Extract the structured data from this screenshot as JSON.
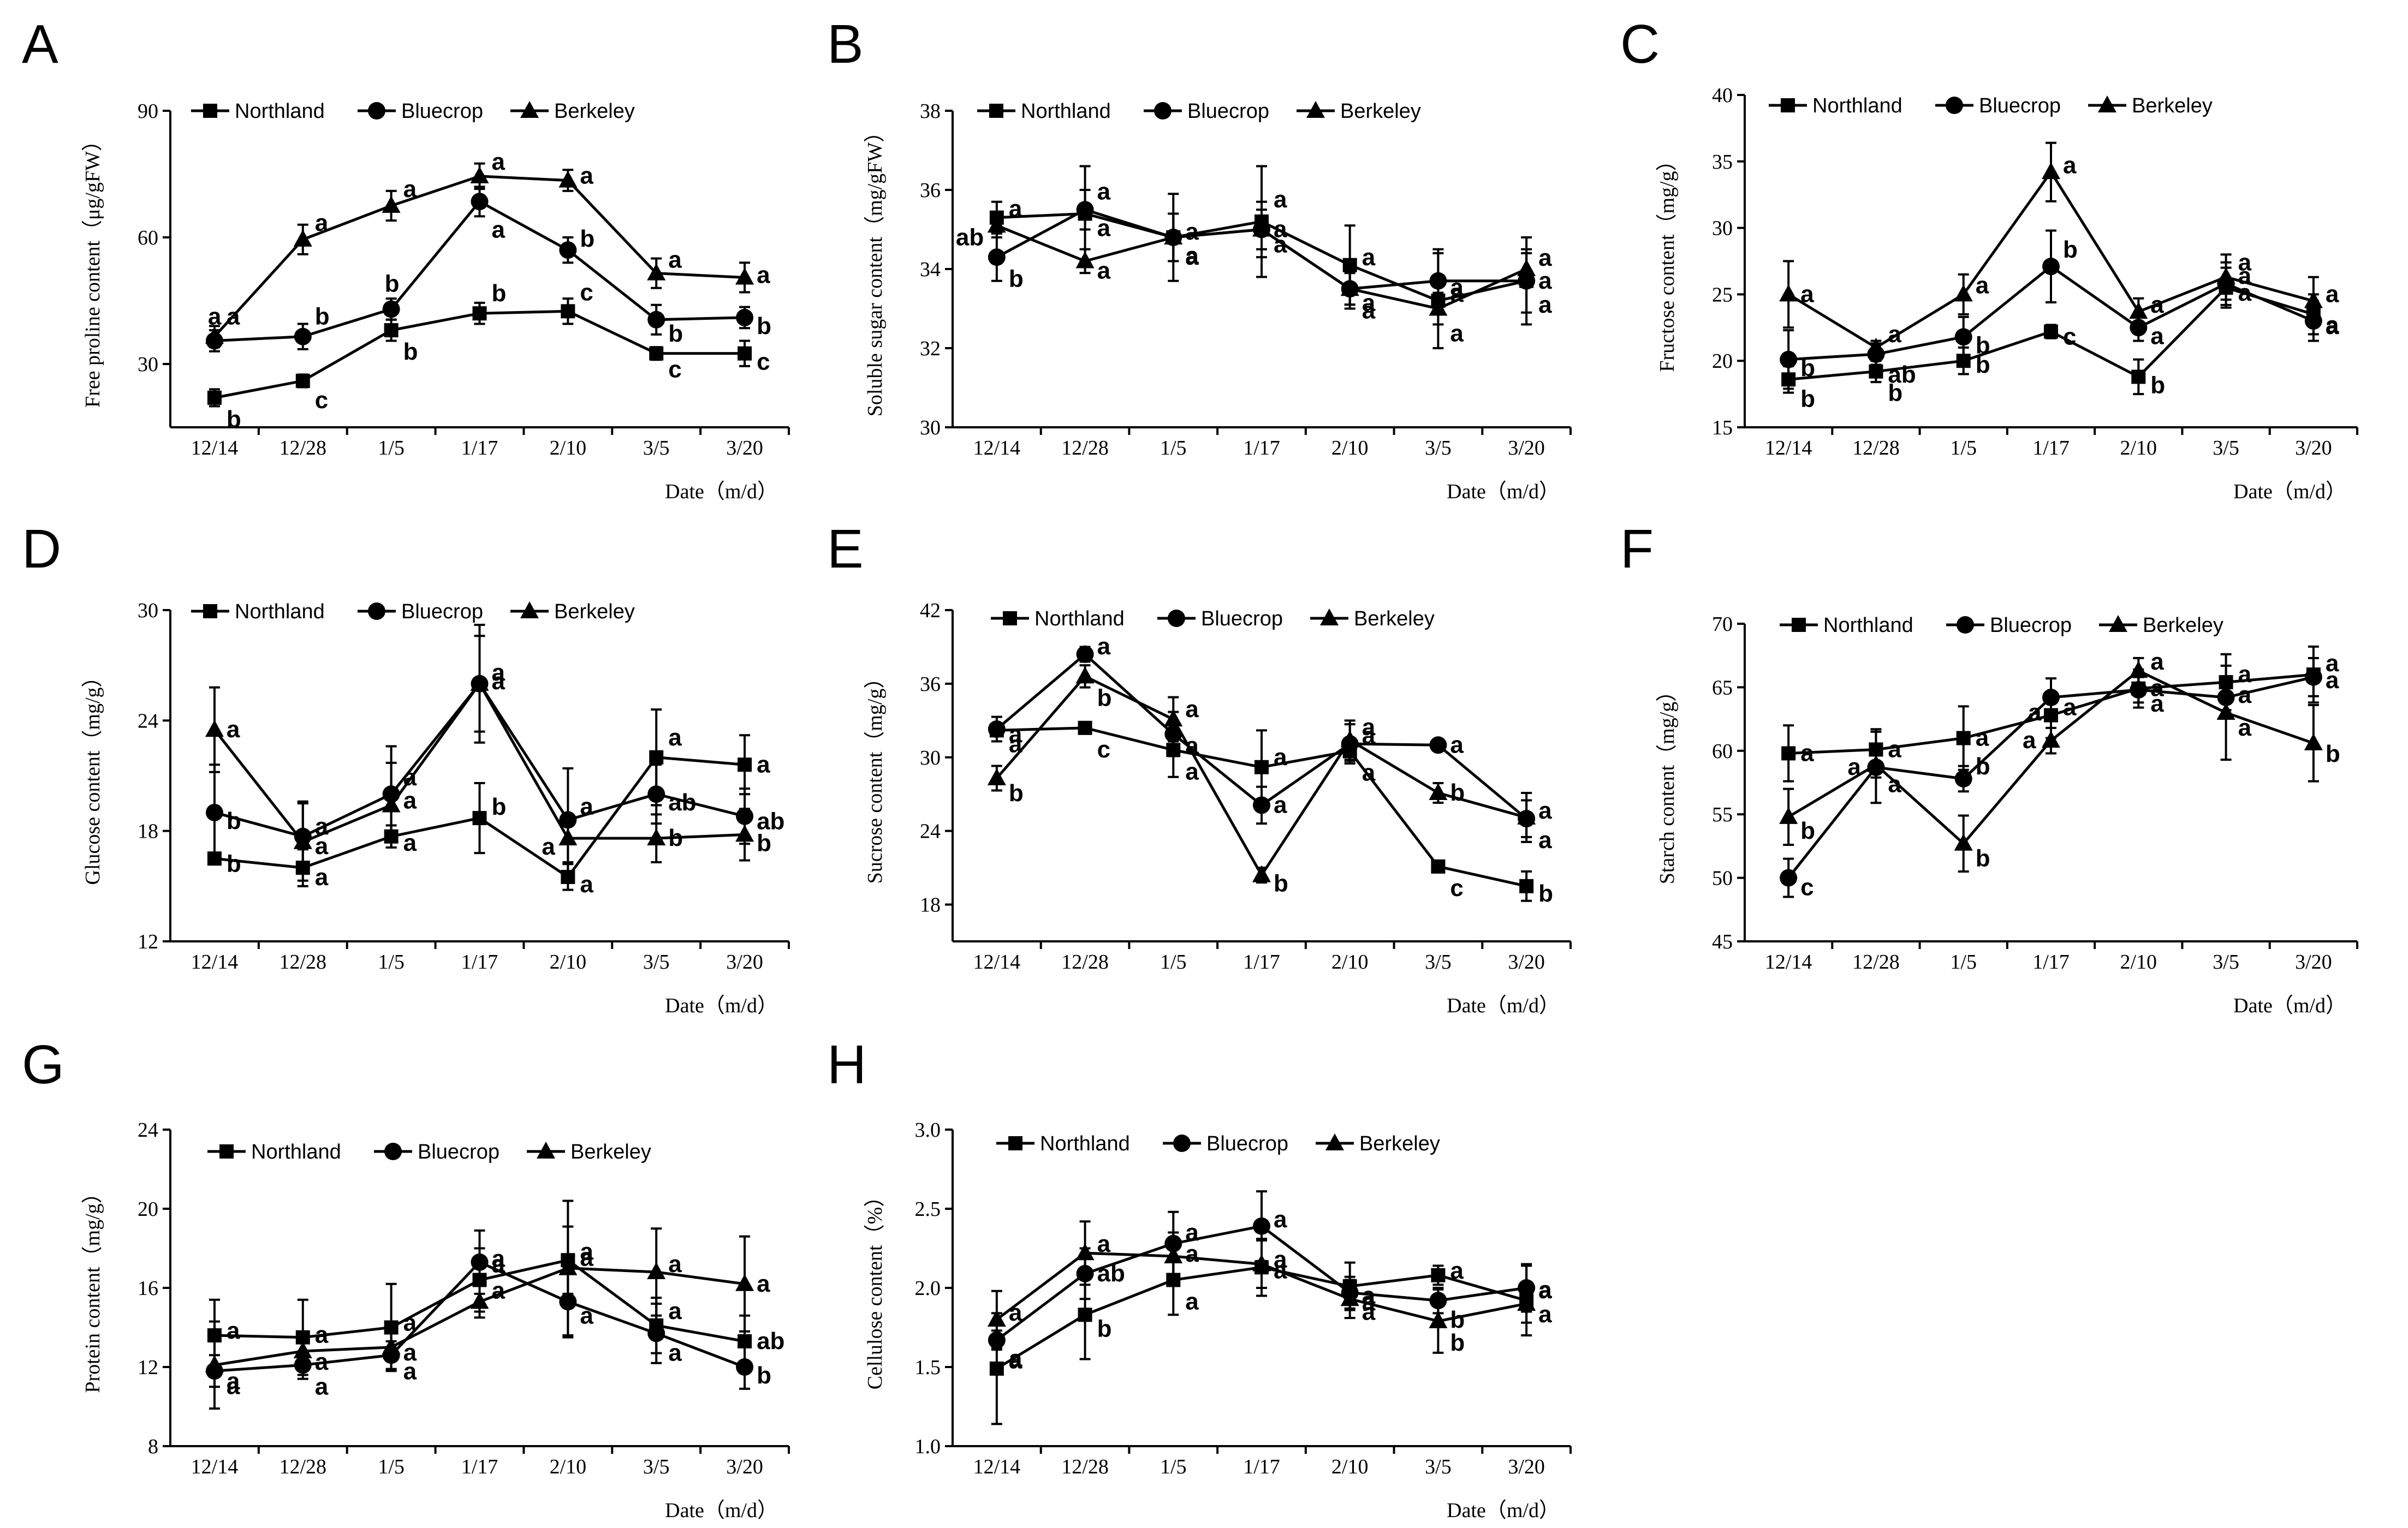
{
  "figure_type": "multi-panel line chart with error bars",
  "chart_data": [
    {
      "panel": "A",
      "type": "line",
      "ylabel": "Free proline content（μg/gFW）",
      "xlabel": "Date（m/d）",
      "ylim": [
        15,
        90
      ],
      "yticks": [
        30,
        60,
        90
      ],
      "categories": [
        "12/14",
        "12/28",
        "1/5",
        "1/17",
        "2/10",
        "3/5",
        "3/20"
      ],
      "series": [
        {
          "name": "Northland",
          "marker": "square",
          "values": [
            22,
            26,
            38,
            42,
            42.5,
            32.5,
            32.5
          ],
          "err": [
            2,
            1.5,
            2.5,
            2.5,
            3,
            1.5,
            3
          ],
          "letters": [
            "b",
            "c",
            "b",
            "b",
            "c",
            "c",
            "c"
          ]
        },
        {
          "name": "Bluecrop",
          "marker": "circle",
          "values": [
            35.5,
            36.5,
            43,
            68.5,
            57,
            40.5,
            41
          ],
          "err": [
            2.5,
            3,
            2.5,
            3.5,
            3,
            3.5,
            2.5
          ],
          "letters": [
            "a",
            "b",
            "b",
            "a",
            "b",
            "b",
            "b"
          ]
        },
        {
          "name": "Berkeley",
          "marker": "triangle",
          "values": [
            36.5,
            59.5,
            67.5,
            74.5,
            73.5,
            51.5,
            50.5
          ],
          "err": [
            2.5,
            3.5,
            3.5,
            3,
            2.5,
            3.5,
            3.5
          ],
          "letters": [
            "a",
            "a",
            "a",
            "a",
            "a",
            "a",
            "a"
          ]
        }
      ]
    },
    {
      "panel": "B",
      "type": "line",
      "ylabel": "Soluble sugar content（mg/gFW）",
      "xlabel": "Date（m/d）",
      "ylim": [
        30,
        38
      ],
      "yticks": [
        30,
        32,
        34,
        36,
        38
      ],
      "categories": [
        "12/14",
        "12/28",
        "1/5",
        "1/17",
        "2/10",
        "3/5",
        "3/20"
      ],
      "series": [
        {
          "name": "Northland",
          "marker": "square",
          "values": [
            35.3,
            35.4,
            34.8,
            35.2,
            34.1,
            33.2,
            33.7
          ],
          "err": [
            0.4,
            1.2,
            1.1,
            1.4,
            1.0,
            1.2,
            1.1
          ],
          "letters": [
            "a",
            "a",
            "a",
            "a",
            "a",
            "a",
            "a"
          ]
        },
        {
          "name": "Bluecrop",
          "marker": "circle",
          "values": [
            34.3,
            35.5,
            34.8,
            35.0,
            33.5,
            33.7,
            33.7
          ],
          "err": [
            0.6,
            0.5,
            0.6,
            0.5,
            0.5,
            0.8,
            0.8
          ],
          "letters": [
            "b",
            "a",
            "a",
            "a",
            "a",
            "a",
            "a"
          ]
        },
        {
          "name": "Berkeley",
          "marker": "triangle",
          "values": [
            35.1,
            34.2,
            34.8,
            35.0,
            33.5,
            33.0,
            34.0
          ],
          "err": [
            0.3,
            0.3,
            0.6,
            0.7,
            0.4,
            0.4,
            0.4
          ],
          "letters": [
            "ab",
            "a",
            "a",
            "a",
            "a",
            "a",
            "a"
          ]
        }
      ]
    },
    {
      "panel": "C",
      "type": "line",
      "ylabel": "Fructose content（mg/g）",
      "xlabel": "Date（m/d）",
      "ylim": [
        15,
        40
      ],
      "yticks": [
        15,
        20,
        25,
        30,
        35,
        40
      ],
      "categories": [
        "12/14",
        "12/28",
        "1/5",
        "1/17",
        "2/10",
        "3/5",
        "3/20"
      ],
      "series": [
        {
          "name": "Northland",
          "marker": "square",
          "values": [
            18.6,
            19.2,
            20.0,
            22.2,
            18.8,
            25.5,
            23.5
          ],
          "err": [
            1.0,
            0.8,
            1.0,
            0.5,
            1.3,
            1.5,
            1.5
          ],
          "letters": [
            "b",
            "b",
            "b",
            "c",
            "b",
            "a",
            "a"
          ]
        },
        {
          "name": "Bluecrop",
          "marker": "circle",
          "values": [
            20.1,
            20.5,
            21.8,
            27.1,
            22.5,
            25.8,
            23.0
          ],
          "err": [
            2.2,
            0.8,
            1.5,
            2.7,
            1.0,
            1.6,
            1.5
          ],
          "letters": [
            "b",
            "ab",
            "b",
            "b",
            "a",
            "a",
            "a"
          ]
        },
        {
          "name": "Berkeley",
          "marker": "triangle",
          "values": [
            25.0,
            21.0,
            25.0,
            34.2,
            23.7,
            26.3,
            24.5
          ],
          "err": [
            2.5,
            0.5,
            1.5,
            2.2,
            1.0,
            1.7,
            1.8
          ],
          "letters": [
            "a",
            "a",
            "a",
            "a",
            "a",
            "a",
            "a"
          ]
        }
      ]
    },
    {
      "panel": "D",
      "type": "line",
      "ylabel": "Glucose content（mg/g）",
      "xlabel": "Date（m/d）",
      "ylim": [
        12,
        30
      ],
      "yticks": [
        12,
        18,
        24,
        30
      ],
      "categories": [
        "12/14",
        "12/28",
        "1/5",
        "1/17",
        "2/10",
        "3/5",
        "3/20"
      ],
      "series": [
        {
          "name": "Northland",
          "marker": "square",
          "values": [
            16.5,
            16.0,
            17.7,
            18.7,
            15.5,
            22.0,
            21.6
          ],
          "err": [
            0.3,
            1.0,
            0.6,
            1.9,
            0.7,
            2.6,
            1.6
          ],
          "letters": [
            "b",
            "a",
            "a",
            "b",
            "a",
            "a",
            "a"
          ]
        },
        {
          "name": "Bluecrop",
          "marker": "circle",
          "values": [
            19.0,
            17.7,
            20.0,
            26.0,
            18.6,
            20.0,
            18.8
          ],
          "err": [
            2.6,
            1.9,
            2.6,
            2.6,
            2.8,
            1.6,
            1.5
          ],
          "letters": [
            "b",
            "a",
            "a",
            "a",
            "a",
            "ab",
            "ab"
          ]
        },
        {
          "name": "Berkeley",
          "marker": "triangle",
          "values": [
            23.5,
            17.4,
            19.4,
            26.0,
            17.6,
            17.6,
            17.8
          ],
          "err": [
            2.3,
            2.1,
            2.3,
            3.2,
            1.3,
            1.3,
            1.4
          ],
          "letters": [
            "a",
            "a",
            "a",
            "a",
            "a",
            "b",
            "b"
          ]
        }
      ]
    },
    {
      "panel": "E",
      "type": "line",
      "ylabel": "Sucrose content（mg/g）",
      "xlabel": "Date（m/d）",
      "ylim": [
        15,
        42
      ],
      "yticks": [
        18,
        24,
        30,
        36,
        42
      ],
      "categories": [
        "12/14",
        "12/28",
        "1/5",
        "1/17",
        "2/10",
        "3/5",
        "3/20"
      ],
      "series": [
        {
          "name": "Northland",
          "marker": "square",
          "values": [
            32.2,
            32.4,
            30.6,
            29.2,
            30.5,
            21.1,
            19.5
          ],
          "err": [
            0.4,
            0.4,
            2.2,
            3.0,
            0.8,
            0.4,
            1.2
          ],
          "letters": [
            "a",
            "c",
            "a",
            "a",
            "a",
            "c",
            "b"
          ]
        },
        {
          "name": "Bluecrop",
          "marker": "circle",
          "values": [
            32.3,
            38.4,
            31.9,
            26.1,
            31.1,
            31.0,
            25.0
          ],
          "err": [
            1.0,
            0.6,
            1.8,
            1.5,
            1.6,
            0.4,
            1.5
          ],
          "letters": [
            "a",
            "a",
            "a",
            "a",
            "a",
            "a",
            "a"
          ]
        },
        {
          "name": "Berkeley",
          "marker": "triangle",
          "values": [
            28.3,
            36.6,
            33.1,
            20.4,
            31.4,
            27.1,
            25.1
          ],
          "err": [
            1.0,
            0.9,
            1.8,
            0.6,
            1.6,
            0.8,
            2.0
          ],
          "letters": [
            "b",
            "b",
            "a",
            "b",
            "a",
            "b",
            "a"
          ]
        }
      ]
    },
    {
      "panel": "F",
      "type": "line",
      "ylabel": "Starch content（mg/g）",
      "xlabel": "Date（m/d）",
      "ylim": [
        45,
        70
      ],
      "yticks": [
        45,
        50,
        55,
        60,
        65,
        70
      ],
      "categories": [
        "12/14",
        "12/28",
        "1/5",
        "1/17",
        "2/10",
        "3/5",
        "3/20"
      ],
      "series": [
        {
          "name": "Northland",
          "marker": "square",
          "values": [
            59.8,
            60.1,
            61.0,
            62.8,
            64.9,
            65.4,
            66.0
          ],
          "err": [
            2.2,
            1.6,
            2.5,
            1.8,
            1.5,
            2.2,
            2.2
          ],
          "letters": [
            "a",
            "a",
            "a",
            "a",
            "a",
            "a",
            "a"
          ]
        },
        {
          "name": "Bluecrop",
          "marker": "circle",
          "values": [
            50.0,
            58.7,
            57.8,
            64.2,
            64.8,
            64.2,
            65.8
          ],
          "err": [
            1.5,
            2.8,
            1.0,
            1.5,
            1.0,
            1.5,
            1.5
          ],
          "letters": [
            "c",
            "a",
            "b",
            "a",
            "a",
            "a",
            "a"
          ]
        },
        {
          "name": "Berkeley",
          "marker": "triangle",
          "values": [
            54.8,
            58.9,
            52.7,
            60.8,
            66.3,
            63.0,
            60.6
          ],
          "err": [
            2.2,
            1.0,
            2.2,
            1.0,
            1.0,
            3.7,
            3.0
          ],
          "letters": [
            "b",
            "a",
            "b",
            "a",
            "a",
            "a",
            "b"
          ]
        }
      ]
    },
    {
      "panel": "G",
      "type": "line",
      "ylabel": "Protein content（mg/g）",
      "xlabel": "Date（m/d）",
      "ylim": [
        8,
        24
      ],
      "yticks": [
        8,
        12,
        16,
        20,
        24
      ],
      "categories": [
        "12/14",
        "12/28",
        "1/5",
        "1/17",
        "2/10",
        "3/5",
        "3/20"
      ],
      "series": [
        {
          "name": "Northland",
          "marker": "square",
          "values": [
            13.6,
            13.5,
            14.0,
            16.4,
            17.4,
            14.1,
            13.3
          ],
          "err": [
            1.8,
            1.9,
            2.2,
            1.6,
            1.7,
            1.4,
            1.3
          ],
          "letters": [
            "a",
            "a",
            "a",
            "a",
            "a",
            "a",
            "ab"
          ]
        },
        {
          "name": "Bluecrop",
          "marker": "circle",
          "values": [
            11.8,
            12.1,
            12.6,
            17.3,
            15.3,
            13.7,
            12.0
          ],
          "err": [
            0.8,
            0.7,
            0.7,
            1.6,
            1.8,
            1.5,
            1.1
          ],
          "letters": [
            "a",
            "a",
            "a",
            "a",
            "a",
            "a",
            "b"
          ]
        },
        {
          "name": "Berkeley",
          "marker": "triangle",
          "values": [
            12.1,
            12.8,
            13.0,
            15.3,
            17.0,
            16.8,
            16.2
          ],
          "err": [
            2.2,
            0.8,
            0.7,
            0.8,
            3.4,
            2.2,
            2.4
          ],
          "letters": [
            "a",
            "a",
            "a",
            "a",
            "a",
            "a",
            "a"
          ]
        }
      ]
    },
    {
      "panel": "H",
      "type": "line",
      "ylabel": "Cellulose content（%）",
      "xlabel": "Date（m/d）",
      "ylim": [
        1.0,
        3.0
      ],
      "yticks": [
        1.0,
        1.5,
        2.0,
        2.5,
        3.0
      ],
      "categories": [
        "12/14",
        "12/28",
        "1/5",
        "1/17",
        "2/10",
        "3/5",
        "3/20"
      ],
      "series": [
        {
          "name": "Northland",
          "marker": "square",
          "values": [
            1.49,
            1.83,
            2.05,
            2.13,
            2.01,
            2.08,
            1.92
          ],
          "err": [
            0.35,
            0.28,
            0.22,
            0.18,
            0.15,
            0.06,
            0.22
          ],
          "letters": [
            "a",
            "b",
            "a",
            "a",
            "a",
            "a",
            "a"
          ]
        },
        {
          "name": "Bluecrop",
          "marker": "circle",
          "values": [
            1.67,
            2.09,
            2.28,
            2.39,
            1.97,
            1.92,
            2.0
          ],
          "err": [
            0.06,
            0.16,
            0.2,
            0.22,
            0.1,
            0.08,
            0.15
          ],
          "letters": [
            "a",
            "ab",
            "a",
            "a",
            "a",
            "b",
            "a"
          ]
        },
        {
          "name": "Berkeley",
          "marker": "triangle",
          "values": [
            1.8,
            2.22,
            2.2,
            2.15,
            1.93,
            1.79,
            1.9
          ],
          "err": [
            0.18,
            0.2,
            0.15,
            0.15,
            0.12,
            0.2,
            0.12
          ],
          "letters": [
            "a",
            "a",
            "a",
            "a",
            "a",
            "b",
            "a"
          ]
        }
      ]
    }
  ]
}
